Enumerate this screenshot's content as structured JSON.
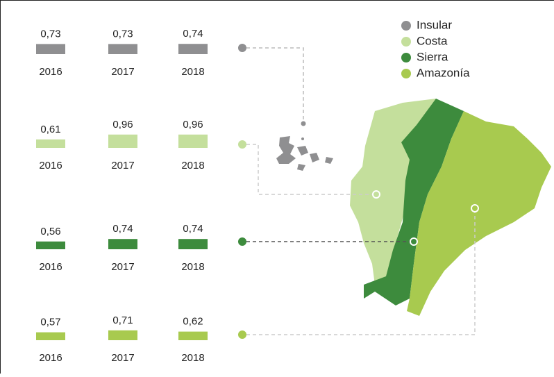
{
  "chart_data": [
    {
      "type": "bar",
      "name": "Insular",
      "color": "#8f8f91",
      "categories": [
        "2016",
        "2017",
        "2018"
      ],
      "values": [
        0.73,
        0.73,
        0.74
      ],
      "value_labels": [
        "0,73",
        "0,73",
        "0,74"
      ]
    },
    {
      "type": "bar",
      "name": "Costa",
      "color": "#c4df9c",
      "categories": [
        "2016",
        "2017",
        "2018"
      ],
      "values": [
        0.61,
        0.96,
        0.96
      ],
      "value_labels": [
        "0,61",
        "0,96",
        "0,96"
      ]
    },
    {
      "type": "bar",
      "name": "Sierra",
      "color": "#3d8b3d",
      "categories": [
        "2016",
        "2017",
        "2018"
      ],
      "values": [
        0.56,
        0.74,
        0.74
      ],
      "value_labels": [
        "0,56",
        "0,74",
        "0,74"
      ]
    },
    {
      "type": "bar",
      "name": "Amazonía",
      "color": "#a8ca4f",
      "categories": [
        "2016",
        "2017",
        "2018"
      ],
      "values": [
        0.57,
        0.71,
        0.62
      ],
      "value_labels": [
        "0,57",
        "0,71",
        "0,62"
      ]
    }
  ]
}
